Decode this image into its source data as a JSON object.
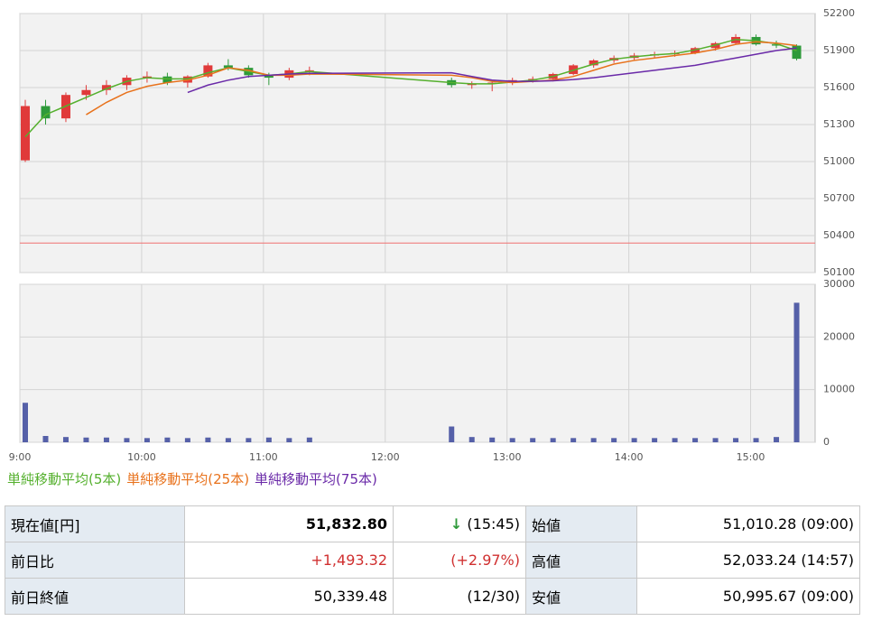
{
  "chart_data": {
    "type": "candlestick",
    "x": [
      "9:00",
      "9:10",
      "9:20",
      "9:30",
      "9:40",
      "9:50",
      "10:00",
      "10:10",
      "10:20",
      "10:30",
      "10:40",
      "10:50",
      "11:00",
      "11:10",
      "11:20",
      "12:30",
      "12:40",
      "12:50",
      "13:00",
      "13:10",
      "13:20",
      "13:30",
      "13:40",
      "13:50",
      "14:00",
      "14:10",
      "14:20",
      "14:30",
      "14:40",
      "14:50",
      "15:00",
      "15:10",
      "15:20"
    ],
    "open": [
      51010,
      51450,
      51350,
      51540,
      51580,
      51620,
      51680,
      51690,
      51640,
      51690,
      51780,
      51760,
      51700,
      51680,
      51740,
      51660,
      51620,
      51630,
      51640,
      51660,
      51670,
      51710,
      51780,
      51820,
      51840,
      51860,
      51870,
      51880,
      51920,
      51960,
      52010,
      51950,
      51940
    ],
    "high": [
      51500,
      51500,
      51560,
      51620,
      51660,
      51700,
      51730,
      51720,
      51700,
      51800,
      51830,
      51780,
      51720,
      51760,
      51770,
      51680,
      51650,
      51660,
      51680,
      51690,
      51720,
      51790,
      51830,
      51860,
      51880,
      51890,
      51900,
      51930,
      51970,
      52033,
      52030,
      51980,
      51950
    ],
    "low": [
      50996,
      51300,
      51320,
      51500,
      51540,
      51580,
      51640,
      51620,
      51600,
      51680,
      51740,
      51680,
      51620,
      51660,
      51700,
      51600,
      51590,
      51570,
      51620,
      51640,
      51650,
      51700,
      51760,
      51800,
      51820,
      51840,
      51850,
      51870,
      51900,
      51950,
      51940,
      51920,
      51820
    ],
    "close": [
      51450,
      51350,
      51540,
      51580,
      51620,
      51680,
      51690,
      51640,
      51690,
      51780,
      51760,
      51700,
      51680,
      51740,
      51740,
      51620,
      51630,
      51640,
      51660,
      51670,
      51710,
      51780,
      51820,
      51840,
      51860,
      51870,
      51880,
      51920,
      51960,
      52010,
      51950,
      51940,
      51833
    ],
    "up_color": "#e03a3a",
    "down_color": "#2e9a3a",
    "series": [
      {
        "name": "単純移動平均(5本)",
        "color": "#55b02e",
        "values": [
          51200,
          51380,
          51450,
          51520,
          51590,
          51650,
          51680,
          51670,
          51670,
          51720,
          51760,
          51730,
          51700,
          51710,
          51730,
          51640,
          51630,
          51630,
          51645,
          51660,
          51690,
          51740,
          51790,
          51830,
          51850,
          51865,
          51875,
          51905,
          51945,
          51990,
          51980,
          51955,
          51900
        ]
      },
      {
        "name": "単純移動平均(25本)",
        "color": "#e8721c",
        "values": [
          null,
          null,
          null,
          51380,
          51480,
          51560,
          51610,
          51640,
          51660,
          51700,
          51760,
          51740,
          51700,
          51700,
          51710,
          51700,
          51680,
          51650,
          51640,
          51650,
          51660,
          51690,
          51740,
          51790,
          51820,
          51840,
          51860,
          51880,
          51910,
          51950,
          51970,
          51960,
          51940
        ]
      },
      {
        "name": "単純移動平均(75本)",
        "color": "#6a2aa8",
        "values": [
          null,
          null,
          null,
          null,
          null,
          null,
          null,
          null,
          51560,
          51620,
          51660,
          51690,
          51700,
          51710,
          51715,
          51720,
          51690,
          51660,
          51650,
          51650,
          51655,
          51665,
          51680,
          51700,
          51720,
          51740,
          51760,
          51780,
          51810,
          51840,
          51870,
          51900,
          51920
        ]
      }
    ],
    "volume": [
      7500,
      1200,
      1000,
      900,
      900,
      800,
      800,
      900,
      800,
      900,
      800,
      800,
      900,
      800,
      900,
      3000,
      1000,
      900,
      800,
      800,
      800,
      800,
      800,
      800,
      800,
      800,
      800,
      800,
      800,
      800,
      800,
      1000,
      26500
    ],
    "volume_color": "#5560a8",
    "prev_close": 50339.48,
    "prev_close_color": "#f07070",
    "xticks": [
      "9:00",
      "10:00",
      "11:00",
      "12:00",
      "13:00",
      "14:00",
      "15:00"
    ],
    "xlim": [
      "9:00",
      "15:30"
    ],
    "ylim": [
      50100,
      52200
    ],
    "yticks": [
      50100,
      50400,
      50700,
      51000,
      51300,
      51600,
      51900,
      52200
    ],
    "vol_ylim": [
      0,
      30000
    ],
    "vol_yticks": [
      0,
      10000,
      20000,
      30000
    ],
    "grid": true
  },
  "table": {
    "rows": [
      [
        "現在値[円]",
        "51,832.80",
        "↓",
        "(15:45)",
        "始値",
        "51,010.28 (09:00)"
      ],
      [
        "前日比",
        "+1,493.32",
        "(+2.97%)",
        "",
        "高値",
        "52,033.24 (14:57)"
      ],
      [
        "前日終値",
        "50,339.48",
        "(12/30)",
        "",
        "安値",
        "50,995.67 (09:00)"
      ]
    ]
  }
}
